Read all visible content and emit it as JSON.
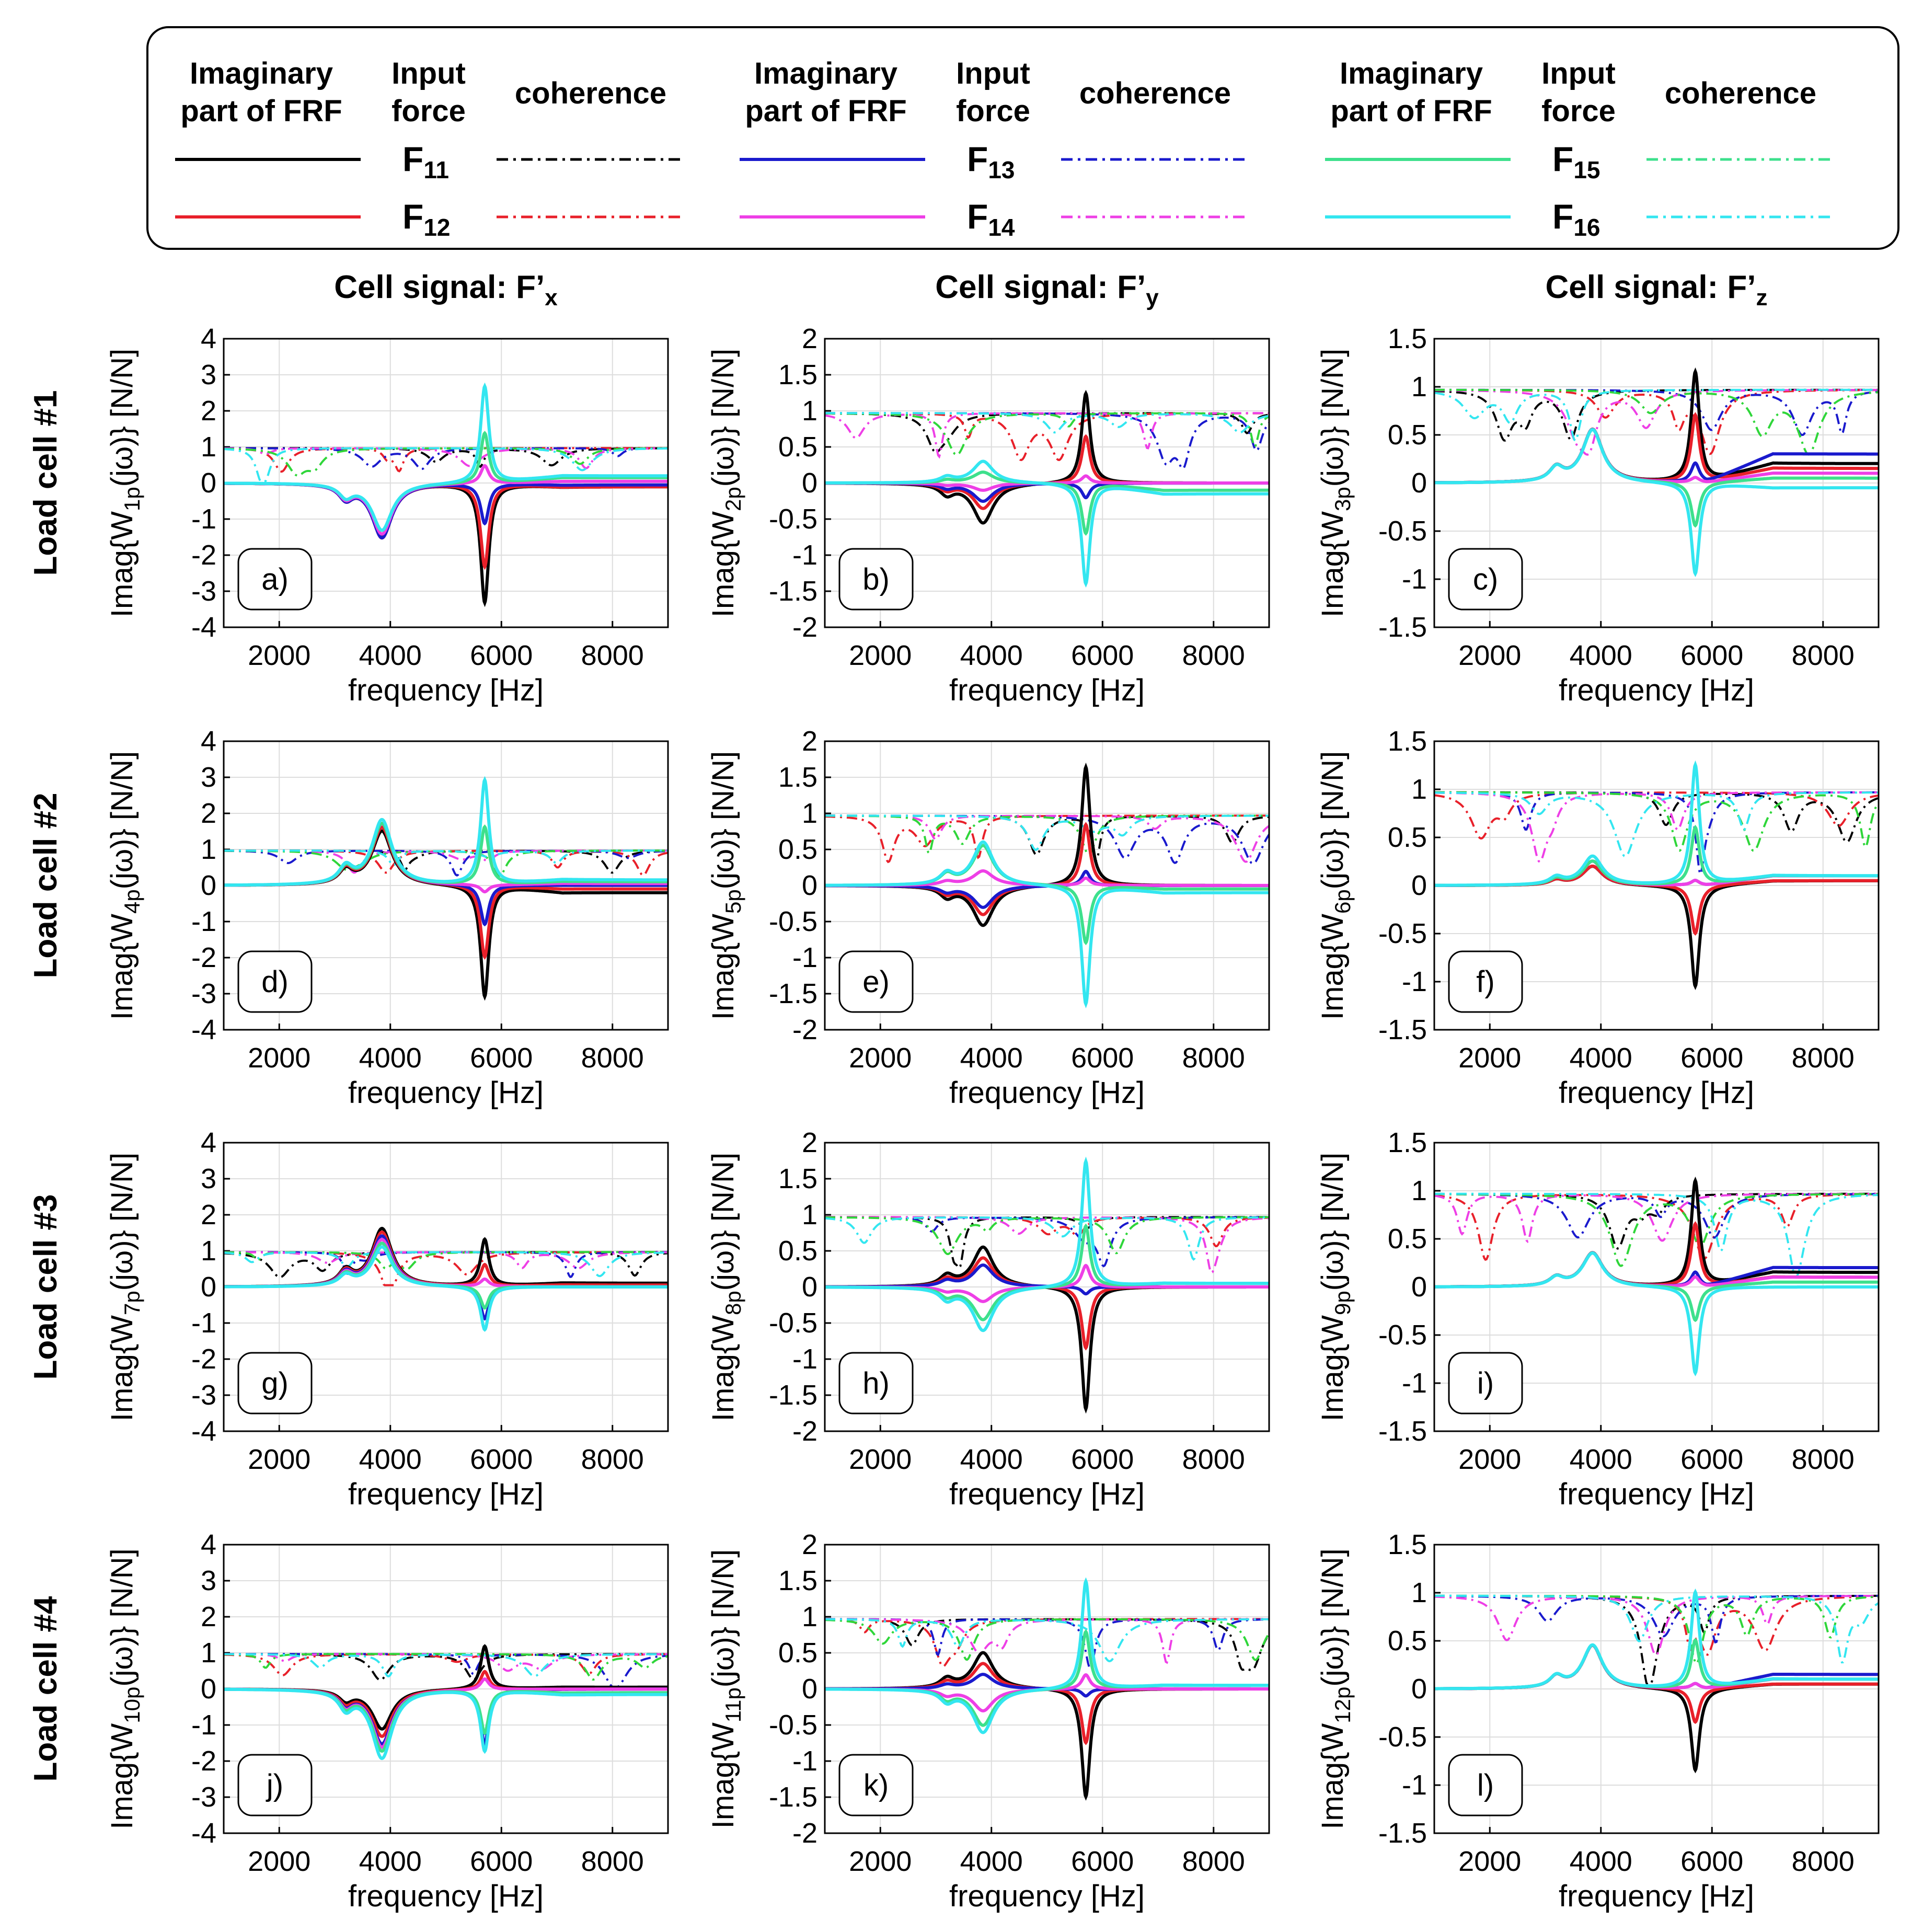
{
  "legend": {
    "groups": [
      {
        "header_frf": [
          "Imaginary",
          "part of FRF"
        ],
        "header_force": [
          "Input",
          "force"
        ],
        "header_coh": "coherence",
        "entries": [
          {
            "force": "F",
            "sub": "11",
            "color": "#000000"
          },
          {
            "force": "F",
            "sub": "12",
            "color": "#e8202a"
          }
        ]
      },
      {
        "header_frf": [
          "Imaginary",
          "part of FRF"
        ],
        "header_force": [
          "Input",
          "force"
        ],
        "header_coh": "coherence",
        "entries": [
          {
            "force": "F",
            "sub": "13",
            "color": "#1a1acd"
          },
          {
            "force": "F",
            "sub": "14",
            "color": "#ee3fe6"
          }
        ]
      },
      {
        "header_frf": [
          "Imaginary",
          "part of FRF"
        ],
        "header_force": [
          "Input",
          "force"
        ],
        "header_coh": "coherence",
        "entries": [
          {
            "force": "F",
            "sub": "15",
            "color": "#3de08c"
          },
          {
            "force": "F",
            "sub": "16",
            "color": "#33e6f0"
          }
        ]
      }
    ]
  },
  "column_titles": [
    "Cell signal: F’x",
    "Cell signal: F’y",
    "Cell signal: F’z"
  ],
  "column_title_parts": [
    {
      "main": "Cell signal: F’",
      "sub": "x"
    },
    {
      "main": "Cell signal: F’",
      "sub": "y"
    },
    {
      "main": "Cell signal: F’",
      "sub": "z"
    }
  ],
  "row_titles": [
    "Load cell #1",
    "Load cell #2",
    "Load cell #3",
    "Load cell #4"
  ],
  "colors": {
    "F11": "#000000",
    "F12": "#e8202a",
    "F13": "#1a1acd",
    "F14": "#ee3fe6",
    "F15": "#3de08c",
    "F16": "#33e6f0",
    "coh15": "#2fd63a"
  },
  "chart_data": [
    {
      "type": "line",
      "panel": "a)",
      "ylabel": "Imag{W1p(jω)} [N/N]",
      "ylabel_main": "Imag{W",
      "ylabel_sub": "1p",
      "ylabel_tail": "(jω)} [N/N]",
      "xlabel": "frequency [Hz]",
      "xlim": [
        1000,
        9000
      ],
      "ylim": [
        -4,
        4
      ],
      "yticks": [
        "4",
        "3",
        "2",
        "1",
        "0",
        "-1",
        "-2",
        "-3",
        "-4"
      ],
      "xticks": [
        "2000",
        "4000",
        "6000",
        "8000"
      ],
      "grid": true,
      "series": {
        "F11": {
          "p1": -1.4,
          "p2": -3.3,
          "base": -0.1
        },
        "F12": {
          "p1": -1.5,
          "p2": -2.3,
          "base": -0.1
        },
        "F13": {
          "p1": -1.5,
          "p2": -1.1,
          "base": -0.05
        },
        "F14": {
          "p1": -1.4,
          "p2": 0.5,
          "base": 0.05
        },
        "F15": {
          "p1": -1.3,
          "p2": 1.4,
          "base": 0.15
        },
        "F16": {
          "p1": -1.3,
          "p2": 2.7,
          "base": 0.2
        }
      }
    },
    {
      "type": "line",
      "panel": "b)",
      "ylabel": "Imag{W2p(jω)} [N/N]",
      "ylabel_main": "Imag{W",
      "ylabel_sub": "2p",
      "ylabel_tail": "(jω)} [N/N]",
      "xlabel": "frequency [Hz]",
      "xlim": [
        1000,
        9000
      ],
      "ylim": [
        -2,
        2
      ],
      "yticks": [
        "2",
        "1.5",
        "1",
        "0.5",
        "0",
        "-0.5",
        "-1",
        "-1.5",
        "-2"
      ],
      "xticks": [
        "2000",
        "4000",
        "6000",
        "8000"
      ],
      "grid": true,
      "series": {
        "F11": {
          "p1": -0.55,
          "p2": 1.25,
          "base": 0.0
        },
        "F12": {
          "p1": -0.35,
          "p2": 0.65,
          "base": 0.0
        },
        "F13": {
          "p1": -0.25,
          "p2": -0.2,
          "base": 0.0
        },
        "F14": {
          "p1": -0.1,
          "p2": 0.1,
          "base": 0.0
        },
        "F15": {
          "p1": 0.15,
          "p2": -0.7,
          "base": -0.1
        },
        "F16": {
          "p1": 0.3,
          "p2": -1.4,
          "base": -0.15
        }
      }
    },
    {
      "type": "line",
      "panel": "c)",
      "ylabel": "Imag{W3p(jω)} [N/N]",
      "ylabel_main": "Imag{W",
      "ylabel_sub": "3p",
      "ylabel_tail": "(jω)} [N/N]",
      "xlabel": "frequency [Hz]",
      "xlim": [
        1000,
        9000
      ],
      "ylim": [
        -1.5,
        1.5
      ],
      "yticks": [
        "1.5",
        "1",
        "0.5",
        "0",
        "-0.5",
        "-1",
        "-1.5"
      ],
      "xticks": [
        "2000",
        "4000",
        "6000",
        "8000"
      ],
      "grid": true,
      "series": {
        "F11": {
          "p1": 0.55,
          "p2": 1.15,
          "base": 0.2
        },
        "F12": {
          "p1": 0.55,
          "p2": 0.7,
          "base": 0.15
        },
        "F13": {
          "p1": 0.55,
          "p2": 0.2,
          "base": 0.3
        },
        "F14": {
          "p1": 0.55,
          "p2": 0.05,
          "base": 0.1
        },
        "F15": {
          "p1": 0.55,
          "p2": -0.45,
          "base": 0.05
        },
        "F16": {
          "p1": 0.55,
          "p2": -0.95,
          "base": -0.05
        }
      }
    },
    {
      "type": "line",
      "panel": "d)",
      "ylabel": "Imag{W4p(jω)} [N/N]",
      "ylabel_main": "Imag{W",
      "ylabel_sub": "4p",
      "ylabel_tail": "(jω)} [N/N]",
      "xlabel": "frequency [Hz]",
      "xlim": [
        1000,
        9000
      ],
      "ylim": [
        -4,
        4
      ],
      "yticks": [
        "4",
        "3",
        "2",
        "1",
        "0",
        "-1",
        "-2",
        "-3",
        "-4"
      ],
      "xticks": [
        "2000",
        "4000",
        "6000",
        "8000"
      ],
      "grid": true,
      "series": {
        "F11": {
          "p1": 1.5,
          "p2": -3.1,
          "base": -0.2
        },
        "F12": {
          "p1": 1.6,
          "p2": -2.0,
          "base": -0.1
        },
        "F13": {
          "p1": 1.7,
          "p2": -1.1,
          "base": 0.0
        },
        "F14": {
          "p1": 1.7,
          "p2": -0.2,
          "base": 0.05
        },
        "F15": {
          "p1": 1.7,
          "p2": 1.6,
          "base": 0.1
        },
        "F16": {
          "p1": 1.8,
          "p2": 2.9,
          "base": 0.15
        }
      }
    },
    {
      "type": "line",
      "panel": "e)",
      "ylabel": "Imag{W5p(jω)} [N/N]",
      "ylabel_main": "Imag{W",
      "ylabel_sub": "5p",
      "ylabel_tail": "(jω)} [N/N]",
      "xlabel": "frequency [Hz]",
      "xlim": [
        1000,
        9000
      ],
      "ylim": [
        -2,
        2
      ],
      "yticks": [
        "2",
        "1.5",
        "1",
        "0.5",
        "0",
        "-0.5",
        "-1",
        "-1.5",
        "-2"
      ],
      "xticks": [
        "2000",
        "4000",
        "6000",
        "8000"
      ],
      "grid": true,
      "series": {
        "F11": {
          "p1": -0.55,
          "p2": 1.65,
          "base": 0.0
        },
        "F12": {
          "p1": -0.4,
          "p2": 0.85,
          "base": 0.0
        },
        "F13": {
          "p1": -0.3,
          "p2": 0.2,
          "base": 0.0
        },
        "F14": {
          "p1": 0.2,
          "p2": 0.1,
          "base": 0.0
        },
        "F15": {
          "p1": 0.55,
          "p2": -0.8,
          "base": -0.05
        },
        "F16": {
          "p1": 0.6,
          "p2": -1.65,
          "base": -0.1
        }
      }
    },
    {
      "type": "line",
      "panel": "f)",
      "ylabel": "Imag{W6p(jω)} [N/N]",
      "ylabel_main": "Imag{W",
      "ylabel_sub": "6p",
      "ylabel_tail": "(jω)} [N/N]",
      "xlabel": "frequency [Hz]",
      "xlim": [
        1000,
        9000
      ],
      "ylim": [
        -1.5,
        1.5
      ],
      "yticks": [
        "1.5",
        "1",
        "0.5",
        "0",
        "-0.5",
        "-1",
        "-1.5"
      ],
      "xticks": [
        "2000",
        "4000",
        "6000",
        "8000"
      ],
      "grid": true,
      "series": {
        "F11": {
          "p1": 0.2,
          "p2": -1.05,
          "base": 0.05
        },
        "F12": {
          "p1": 0.2,
          "p2": -0.5,
          "base": 0.05
        },
        "F13": {
          "p1": 0.25,
          "p2": 0.05,
          "base": 0.1
        },
        "F14": {
          "p1": 0.25,
          "p2": 0.05,
          "base": 0.1
        },
        "F15": {
          "p1": 0.25,
          "p2": 0.6,
          "base": 0.1
        },
        "F16": {
          "p1": 0.3,
          "p2": 1.25,
          "base": 0.1
        }
      }
    },
    {
      "type": "line",
      "panel": "g)",
      "ylabel": "Imag{W7p(jω)} [N/N]",
      "ylabel_main": "Imag{W",
      "ylabel_sub": "7p",
      "ylabel_tail": "(jω)} [N/N]",
      "xlabel": "frequency [Hz]",
      "xlim": [
        1000,
        9000
      ],
      "ylim": [
        -4,
        4
      ],
      "yticks": [
        "4",
        "3",
        "2",
        "1",
        "0",
        "-1",
        "-2",
        "-3",
        "-4"
      ],
      "xticks": [
        "2000",
        "4000",
        "6000",
        "8000"
      ],
      "grid": true,
      "series": {
        "F11": {
          "p1": 1.6,
          "p2": 1.3,
          "base": 0.1
        },
        "F12": {
          "p1": 1.5,
          "p2": 0.6,
          "base": 0.05
        },
        "F13": {
          "p1": 1.4,
          "p2": -0.9,
          "base": 0.0
        },
        "F14": {
          "p1": 1.3,
          "p2": 0.2,
          "base": 0.0
        },
        "F15": {
          "p1": 1.2,
          "p2": -0.6,
          "base": 0.0
        },
        "F16": {
          "p1": 1.1,
          "p2": -1.2,
          "base": 0.0
        }
      }
    },
    {
      "type": "line",
      "panel": "h)",
      "ylabel": "Imag{W8p(jω)} [N/N]",
      "ylabel_main": "Imag{W",
      "ylabel_sub": "8p",
      "ylabel_tail": "(jω)} [N/N]",
      "xlabel": "frequency [Hz]",
      "xlim": [
        1000,
        9000
      ],
      "ylim": [
        -2,
        2
      ],
      "yticks": [
        "2",
        "1.5",
        "1",
        "0.5",
        "0",
        "-0.5",
        "-1",
        "-1.5",
        "-2"
      ],
      "xticks": [
        "2000",
        "4000",
        "6000",
        "8000"
      ],
      "grid": true,
      "series": {
        "F11": {
          "p1": 0.55,
          "p2": -1.7,
          "base": 0.0
        },
        "F12": {
          "p1": 0.4,
          "p2": -0.85,
          "base": 0.0
        },
        "F13": {
          "p1": 0.3,
          "p2": -0.1,
          "base": 0.0
        },
        "F14": {
          "p1": -0.2,
          "p2": 0.3,
          "base": 0.0
        },
        "F15": {
          "p1": -0.45,
          "p2": 0.85,
          "base": 0.05
        },
        "F16": {
          "p1": -0.6,
          "p2": 1.75,
          "base": 0.05
        }
      }
    },
    {
      "type": "line",
      "panel": "i)",
      "ylabel": "Imag{W9p(jω)} [N/N]",
      "ylabel_main": "Imag{W",
      "ylabel_sub": "9p",
      "ylabel_tail": "(jω)} [N/N]",
      "xlabel": "frequency [Hz]",
      "xlim": [
        1000,
        9000
      ],
      "ylim": [
        -1.5,
        1.5
      ],
      "yticks": [
        "1.5",
        "1",
        "0.5",
        "0",
        "-0.5",
        "-1",
        "-1.5"
      ],
      "xticks": [
        "2000",
        "4000",
        "6000",
        "8000"
      ],
      "grid": true,
      "series": {
        "F11": {
          "p1": 0.35,
          "p2": 1.1,
          "base": 0.15
        },
        "F12": {
          "p1": 0.35,
          "p2": 0.65,
          "base": 0.1
        },
        "F13": {
          "p1": 0.35,
          "p2": 0.15,
          "base": 0.2
        },
        "F14": {
          "p1": 0.35,
          "p2": 0.1,
          "base": 0.1
        },
        "F15": {
          "p1": 0.35,
          "p2": -0.35,
          "base": 0.05
        },
        "F16": {
          "p1": 0.35,
          "p2": -0.9,
          "base": 0.0
        }
      }
    },
    {
      "type": "line",
      "panel": "j)",
      "ylabel": "Imag{W10p(jω)} [N/N]",
      "ylabel_main": "Imag{W",
      "ylabel_sub": "10p",
      "ylabel_tail": "(jω)} [N/N]",
      "xlabel": "frequency [Hz]",
      "xlim": [
        1000,
        9000
      ],
      "ylim": [
        -4,
        4
      ],
      "yticks": [
        "4",
        "3",
        "2",
        "1",
        "0",
        "-1",
        "-2",
        "-3",
        "-4"
      ],
      "xticks": [
        "2000",
        "4000",
        "6000",
        "8000"
      ],
      "grid": true,
      "series": {
        "F11": {
          "p1": -1.1,
          "p2": 1.2,
          "base": 0.05
        },
        "F12": {
          "p1": -1.3,
          "p2": 0.5,
          "base": 0.0
        },
        "F13": {
          "p1": -1.5,
          "p2": -1.5,
          "base": 0.0
        },
        "F14": {
          "p1": -1.6,
          "p2": 0.3,
          "base": 0.0
        },
        "F15": {
          "p1": -1.7,
          "p2": -1.2,
          "base": -0.1
        },
        "F16": {
          "p1": -1.9,
          "p2": -1.7,
          "base": -0.15
        }
      }
    },
    {
      "type": "line",
      "panel": "k)",
      "ylabel": "Imag{W11p(jω)} [N/N]",
      "ylabel_main": "Imag{W",
      "ylabel_sub": "11p",
      "ylabel_tail": "(jω)} [N/N]",
      "xlabel": "frequency [Hz]",
      "xlim": [
        1000,
        9000
      ],
      "ylim": [
        -2,
        2
      ],
      "yticks": [
        "2",
        "1.5",
        "1",
        "0.5",
        "0",
        "-0.5",
        "-1",
        "-1.5",
        "-2"
      ],
      "xticks": [
        "2000",
        "4000",
        "6000",
        "8000"
      ],
      "grid": true,
      "series": {
        "F11": {
          "p1": 0.5,
          "p2": -1.5,
          "base": 0.0
        },
        "F12": {
          "p1": 0.35,
          "p2": -0.75,
          "base": 0.0
        },
        "F13": {
          "p1": 0.2,
          "p2": -0.1,
          "base": 0.0
        },
        "F14": {
          "p1": -0.3,
          "p2": 0.2,
          "base": 0.0
        },
        "F15": {
          "p1": -0.5,
          "p2": 0.8,
          "base": 0.05
        },
        "F16": {
          "p1": -0.6,
          "p2": 1.5,
          "base": 0.05
        }
      }
    },
    {
      "type": "line",
      "panel": "l)",
      "ylabel": "Imag{W12p(jω)} [N/N]",
      "ylabel_main": "Imag{W",
      "ylabel_sub": "12p",
      "ylabel_tail": "(jω)} [N/N]",
      "xlabel": "frequency [Hz]",
      "xlim": [
        1000,
        9000
      ],
      "ylim": [
        -1.5,
        1.5
      ],
      "yticks": [
        "1.5",
        "1",
        "0.5",
        "0",
        "-0.5",
        "-1",
        "-1.5"
      ],
      "xticks": [
        "2000",
        "4000",
        "6000",
        "8000"
      ],
      "grid": true,
      "series": {
        "F11": {
          "p1": 0.45,
          "p2": -0.85,
          "base": 0.05
        },
        "F12": {
          "p1": 0.45,
          "p2": -0.35,
          "base": 0.05
        },
        "F13": {
          "p1": 0.45,
          "p2": 0.05,
          "base": 0.15
        },
        "F14": {
          "p1": 0.45,
          "p2": 0.05,
          "base": 0.1
        },
        "F15": {
          "p1": 0.45,
          "p2": 0.5,
          "base": 0.1
        },
        "F16": {
          "p1": 0.45,
          "p2": 1.0,
          "base": 0.1
        }
      }
    }
  ]
}
